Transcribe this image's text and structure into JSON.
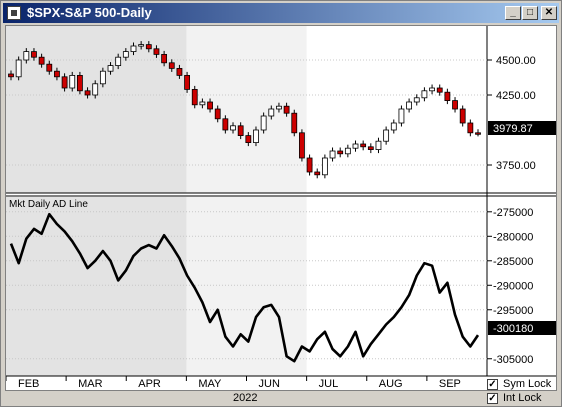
{
  "window": {
    "title": "$SPX-S&P 500-Daily",
    "controls": {
      "minimize": "_",
      "maximize": "□",
      "close": "✕"
    }
  },
  "price_panel": {
    "y_ticks": [
      "4500.00",
      "4250.00",
      "3750.00"
    ],
    "last_value": "3979.87"
  },
  "ad_panel": {
    "label": "Mkt Daily AD Line",
    "y_ticks": [
      "-275000",
      "-280000",
      "-285000",
      "-290000",
      "-295000",
      "-305000"
    ],
    "last_value": "-300180"
  },
  "x_axis": {
    "months": [
      "FEB",
      "MAR",
      "APR",
      "MAY",
      "JUN",
      "JUL",
      "AUG",
      "SEP"
    ],
    "year": "2022"
  },
  "options": {
    "sym_lock": {
      "label": "Sym Lock",
      "checked": true
    },
    "int_lock": {
      "label": "Int Lock",
      "checked": true
    }
  },
  "colors": {
    "up_candle": "#ffffff",
    "down_candle": "#cc0000",
    "ad_line": "#000000"
  },
  "chart_data": [
    {
      "type": "candlestick",
      "title": "$SPX-S&P 500-Daily",
      "x": [
        "FEB",
        "FEB",
        "FEB",
        "FEB",
        "FEB",
        "FEB",
        "FEB",
        "FEB",
        "FEB",
        "MAR",
        "MAR",
        "MAR",
        "MAR",
        "MAR",
        "MAR",
        "MAR",
        "MAR",
        "MAR",
        "APR",
        "APR",
        "APR",
        "APR",
        "APR",
        "APR",
        "APR",
        "APR",
        "MAY",
        "MAY",
        "MAY",
        "MAY",
        "MAY",
        "MAY",
        "MAY",
        "MAY",
        "MAY",
        "JUN",
        "JUN",
        "JUN",
        "JUN",
        "JUN",
        "JUN",
        "JUN",
        "JUN",
        "JUL",
        "JUL",
        "JUL",
        "JUL",
        "JUL",
        "JUL",
        "JUL",
        "JUL",
        "AUG",
        "AUG",
        "AUG",
        "AUG",
        "AUG",
        "AUG",
        "AUG",
        "AUG",
        "AUG",
        "SEP",
        "SEP"
      ],
      "close": [
        4380,
        4500,
        4560,
        4520,
        4470,
        4420,
        4380,
        4300,
        4390,
        4280,
        4250,
        4330,
        4420,
        4460,
        4520,
        4560,
        4600,
        4610,
        4580,
        4540,
        4480,
        4440,
        4390,
        4290,
        4180,
        4200,
        4150,
        4080,
        4000,
        4030,
        3960,
        3910,
        4000,
        4100,
        4150,
        4170,
        4120,
        3980,
        3800,
        3700,
        3680,
        3800,
        3850,
        3830,
        3870,
        3900,
        3880,
        3860,
        3920,
        4000,
        4050,
        4150,
        4200,
        4230,
        4280,
        4300,
        4270,
        4210,
        4150,
        4050,
        3980,
        3979.87
      ],
      "ylim": [
        3600,
        4700
      ],
      "y_ticks": [
        3750,
        4250,
        4500
      ]
    },
    {
      "type": "line",
      "title": "Mkt Daily AD Line",
      "x": [
        "FEB",
        "FEB",
        "FEB",
        "FEB",
        "FEB",
        "FEB",
        "FEB",
        "FEB",
        "FEB",
        "MAR",
        "MAR",
        "MAR",
        "MAR",
        "MAR",
        "MAR",
        "MAR",
        "MAR",
        "MAR",
        "APR",
        "APR",
        "APR",
        "APR",
        "APR",
        "APR",
        "APR",
        "APR",
        "MAY",
        "MAY",
        "MAY",
        "MAY",
        "MAY",
        "MAY",
        "MAY",
        "MAY",
        "MAY",
        "JUN",
        "JUN",
        "JUN",
        "JUN",
        "JUN",
        "JUN",
        "JUN",
        "JUN",
        "JUL",
        "JUL",
        "JUL",
        "JUL",
        "JUL",
        "JUL",
        "JUL",
        "JUL",
        "AUG",
        "AUG",
        "AUG",
        "AUG",
        "AUG",
        "AUG",
        "AUG",
        "AUG",
        "AUG",
        "SEP",
        "SEP"
      ],
      "values": [
        -281500,
        -285500,
        -280500,
        -278500,
        -279500,
        -275500,
        -277500,
        -279000,
        -281000,
        -283500,
        -286500,
        -285000,
        -283000,
        -285000,
        -289000,
        -287000,
        -284000,
        -282500,
        -281800,
        -282500,
        -279800,
        -282000,
        -284500,
        -288000,
        -290500,
        -293500,
        -297500,
        -295000,
        -300500,
        -302500,
        -300000,
        -301500,
        -296500,
        -294500,
        -294000,
        -296500,
        -304500,
        -305500,
        -302500,
        -303500,
        -301000,
        -299500,
        -303000,
        -304500,
        -302500,
        -299500,
        -304500,
        -302000,
        -300000,
        -298000,
        -296500,
        -294500,
        -292000,
        -288000,
        -285500,
        -286000,
        -291500,
        -289500,
        -296000,
        -300500,
        -302500,
        -300180
      ],
      "ylim": [
        -307500,
        -273000
      ],
      "y_ticks": [
        -275000,
        -280000,
        -285000,
        -290000,
        -295000,
        -305000
      ]
    }
  ]
}
